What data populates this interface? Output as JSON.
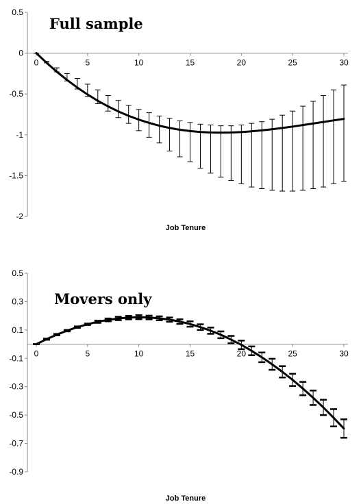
{
  "chart_data": [
    {
      "type": "line",
      "title": "Full sample",
      "xlabel": "Job Tenure",
      "ylabel": "",
      "xlim": [
        0,
        30
      ],
      "ylim": [
        -2,
        0.5
      ],
      "x_ticks": [
        0,
        5,
        10,
        15,
        20,
        25,
        30
      ],
      "y_ticks": [
        0.5,
        0,
        -0.5,
        -1,
        -1.5,
        -2
      ],
      "x_tick_labels": [
        "0",
        "5",
        "10",
        "15",
        "20",
        "25",
        "30"
      ],
      "y_tick_labels": [
        "0.5",
        "0",
        "-0.5",
        "-1",
        "-1.5",
        "-2"
      ],
      "grid": false,
      "series": [
        {
          "x": [
            0,
            1,
            2,
            3,
            4,
            5,
            6,
            7,
            8,
            9,
            10,
            11,
            12,
            13,
            14,
            15,
            16,
            17,
            18,
            19,
            20,
            21,
            22,
            23,
            24,
            25,
            26,
            27,
            28,
            29,
            30
          ],
          "values": [
            0,
            -0.118,
            -0.228,
            -0.329,
            -0.422,
            -0.507,
            -0.584,
            -0.653,
            -0.714,
            -0.768,
            -0.815,
            -0.855,
            -0.889,
            -0.917,
            -0.939,
            -0.955,
            -0.966,
            -0.972,
            -0.974,
            -0.972,
            -0.967,
            -0.958,
            -0.946,
            -0.933,
            -0.917,
            -0.899,
            -0.881,
            -0.862,
            -0.843,
            -0.824,
            -0.805
          ],
          "error_lower": [
            0,
            -0.12,
            -0.23,
            -0.34,
            -0.44,
            -0.53,
            -0.62,
            -0.71,
            -0.79,
            -0.86,
            -0.95,
            -1.03,
            -1.1,
            -1.2,
            -1.27,
            -1.33,
            -1.41,
            -1.47,
            -1.52,
            -1.56,
            -1.6,
            -1.64,
            -1.66,
            -1.68,
            -1.69,
            -1.69,
            -1.68,
            -1.66,
            -1.64,
            -1.6,
            -1.57
          ],
          "error_upper": [
            0,
            -0.1,
            -0.18,
            -0.25,
            -0.31,
            -0.38,
            -0.45,
            -0.52,
            -0.58,
            -0.64,
            -0.69,
            -0.73,
            -0.77,
            -0.8,
            -0.83,
            -0.85,
            -0.87,
            -0.88,
            -0.89,
            -0.89,
            -0.88,
            -0.86,
            -0.84,
            -0.81,
            -0.76,
            -0.71,
            -0.65,
            -0.59,
            -0.52,
            -0.45,
            -0.39
          ]
        }
      ]
    },
    {
      "type": "line",
      "title": "Movers only",
      "xlabel": "Job Tenure",
      "ylabel": "",
      "xlim": [
        0,
        30
      ],
      "ylim": [
        -0.9,
        0.5
      ],
      "x_ticks": [
        0,
        5,
        10,
        15,
        20,
        25,
        30
      ],
      "y_ticks": [
        0.5,
        0.3,
        0.1,
        -0.1,
        -0.3,
        -0.5,
        -0.7,
        -0.9
      ],
      "x_tick_labels": [
        "0",
        "5",
        "10",
        "15",
        "20",
        "25",
        "30"
      ],
      "y_tick_labels": [
        "0.5",
        "0.3",
        "0.1",
        "-0.1",
        "-0.3",
        "-0.5",
        "-0.7",
        "-0.9"
      ],
      "grid": false,
      "series": [
        {
          "x": [
            0,
            1,
            2,
            3,
            4,
            5,
            6,
            7,
            8,
            9,
            10,
            11,
            12,
            13,
            14,
            15,
            16,
            17,
            18,
            19,
            20,
            21,
            22,
            23,
            24,
            25,
            26,
            27,
            28,
            29,
            30
          ],
          "values": [
            0,
            0.035,
            0.067,
            0.095,
            0.12,
            0.14,
            0.158,
            0.171,
            0.181,
            0.187,
            0.19,
            0.188,
            0.182,
            0.173,
            0.159,
            0.142,
            0.12,
            0.095,
            0.066,
            0.032,
            -0.005,
            -0.047,
            -0.093,
            -0.142,
            -0.195,
            -0.252,
            -0.313,
            -0.378,
            -0.446,
            -0.519,
            -0.595
          ],
          "error_lower": [
            0.0,
            0.031,
            0.062,
            0.09,
            0.115,
            0.135,
            0.15,
            0.161,
            0.169,
            0.175,
            0.176,
            0.175,
            0.168,
            0.158,
            0.143,
            0.123,
            0.1,
            0.073,
            0.042,
            0.006,
            -0.035,
            -0.078,
            -0.127,
            -0.181,
            -0.235,
            -0.295,
            -0.36,
            -0.429,
            -0.5,
            -0.58,
            -0.66
          ],
          "error_upper": [
            0.0,
            0.039,
            0.072,
            0.1,
            0.125,
            0.145,
            0.166,
            0.181,
            0.193,
            0.199,
            0.204,
            0.201,
            0.196,
            0.188,
            0.175,
            0.161,
            0.14,
            0.117,
            0.09,
            0.058,
            0.025,
            -0.016,
            -0.059,
            -0.103,
            -0.155,
            -0.209,
            -0.266,
            -0.327,
            -0.392,
            -0.458,
            -0.53
          ]
        }
      ]
    }
  ]
}
